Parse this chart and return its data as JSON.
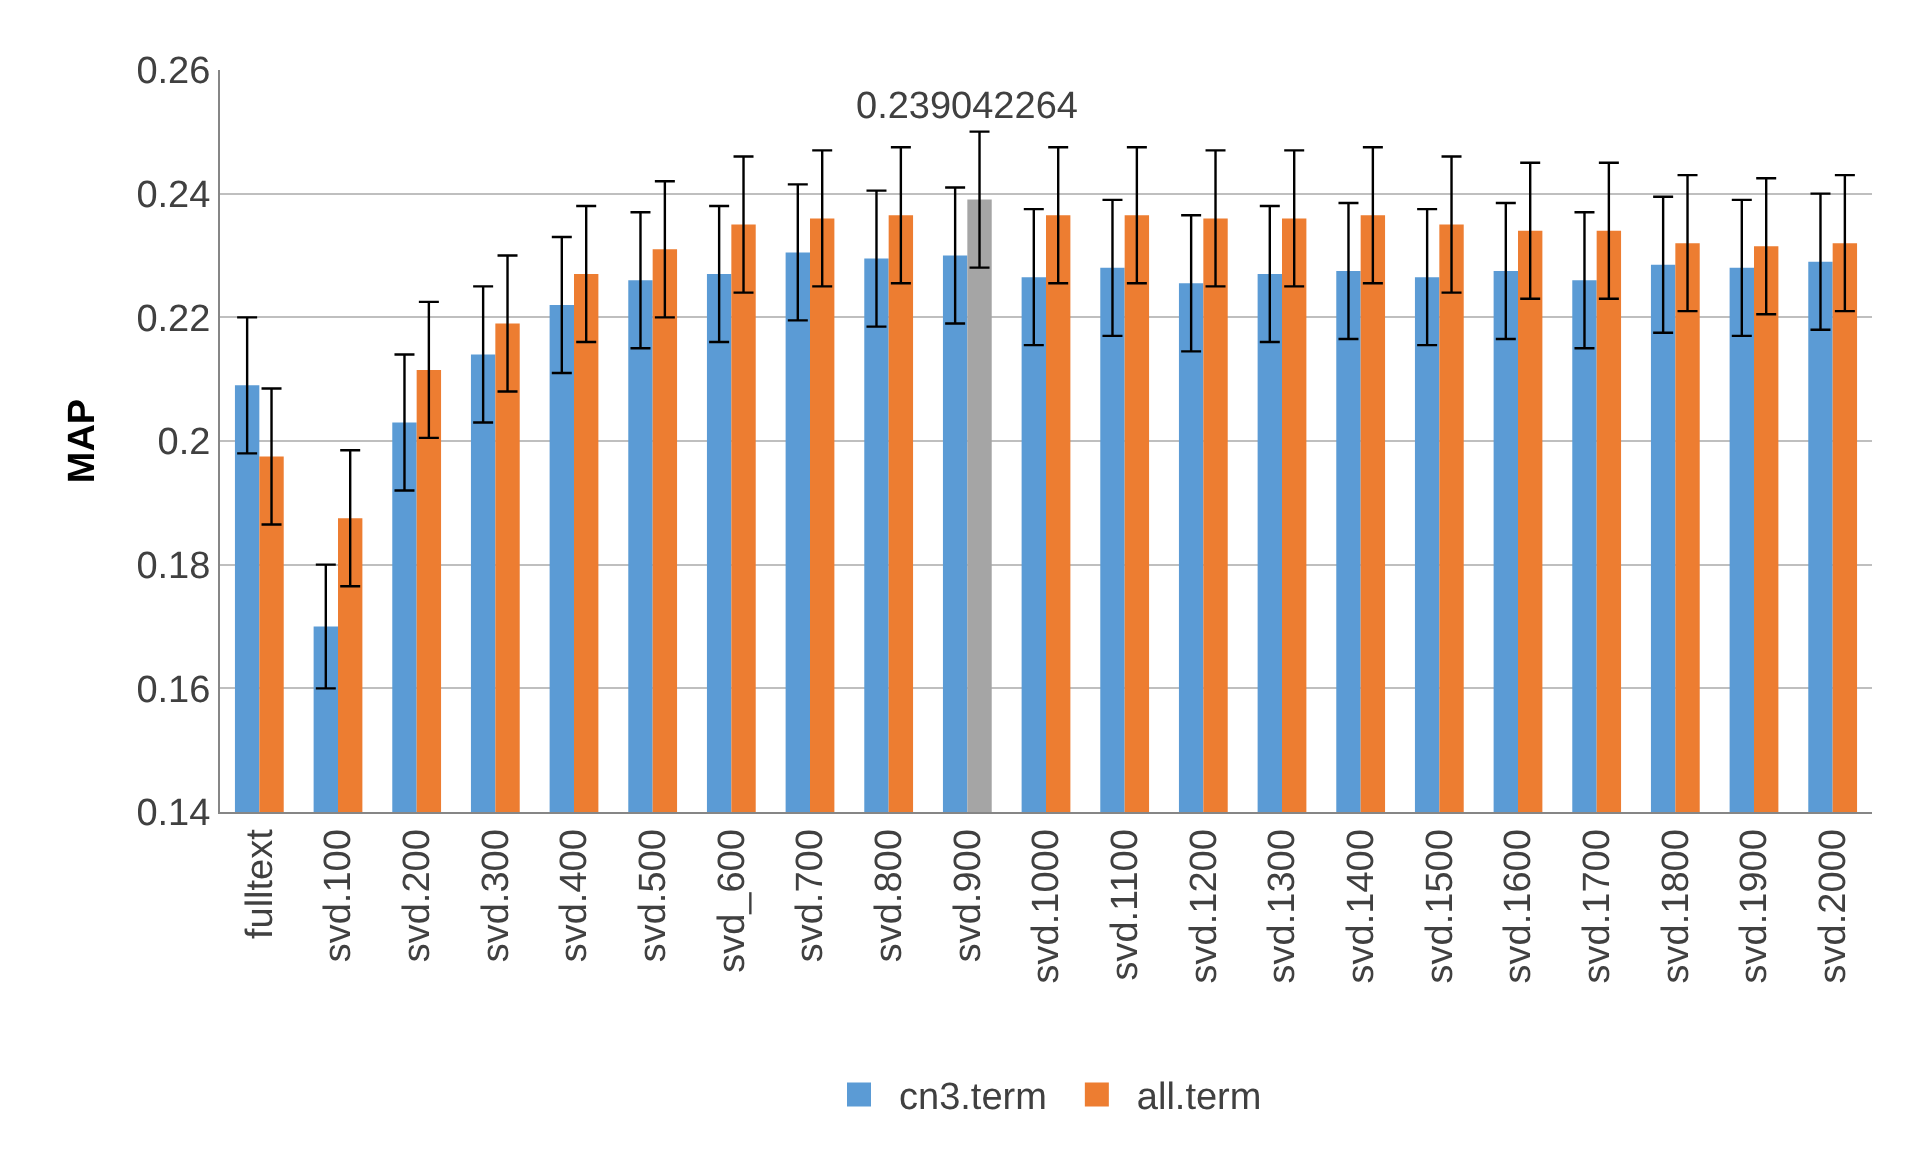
{
  "chart_data": {
    "type": "bar",
    "ylabel": "MAP",
    "categories": [
      "fulltext",
      "svd.100",
      "svd.200",
      "svd.300",
      "svd.400",
      "svd.500",
      "svd_600",
      "svd.700",
      "svd.800",
      "svd.900",
      "svd.1000",
      "svd.1100",
      "svd.1200",
      "svd.1300",
      "svd.1400",
      "svd.1500",
      "svd.1600",
      "svd.1700",
      "svd.1800",
      "svd.1900",
      "svd.2000"
    ],
    "series": [
      {
        "name": "cn3.term",
        "color": "#5b9bd5",
        "values": [
          0.209,
          0.17,
          0.203,
          0.214,
          0.222,
          0.226,
          0.227,
          0.2305,
          0.2295,
          0.23,
          0.2265,
          0.228,
          0.2255,
          0.227,
          0.2275,
          0.2265,
          0.2275,
          0.226,
          0.2285,
          0.228,
          0.229
        ],
        "errors": [
          0.011,
          0.01,
          0.011,
          0.011,
          0.011,
          0.011,
          0.011,
          0.011,
          0.011,
          0.011,
          0.011,
          0.011,
          0.011,
          0.011,
          0.011,
          0.011,
          0.011,
          0.011,
          0.011,
          0.011,
          0.011
        ]
      },
      {
        "name": "all.term",
        "color": "#ed7d31",
        "colors": [
          "#ed7d31",
          "#ed7d31",
          "#ed7d31",
          "#ed7d31",
          "#ed7d31",
          "#ed7d31",
          "#ed7d31",
          "#ed7d31",
          "#ed7d31",
          "#a5a5a5",
          "#ed7d31",
          "#ed7d31",
          "#ed7d31",
          "#ed7d31",
          "#ed7d31",
          "#ed7d31",
          "#ed7d31",
          "#ed7d31",
          "#ed7d31",
          "#ed7d31",
          "#ed7d31"
        ],
        "values": [
          0.1975,
          0.1875,
          0.2115,
          0.219,
          0.227,
          0.231,
          0.235,
          0.236,
          0.2365,
          0.239042264,
          0.2365,
          0.2365,
          0.236,
          0.236,
          0.2365,
          0.235,
          0.234,
          0.234,
          0.232,
          0.2315,
          0.232
        ],
        "errors": [
          0.011,
          0.011,
          0.011,
          0.011,
          0.011,
          0.011,
          0.011,
          0.011,
          0.011,
          0.011,
          0.011,
          0.011,
          0.011,
          0.011,
          0.011,
          0.011,
          0.011,
          0.011,
          0.011,
          0.011,
          0.011
        ],
        "value_labels": [
          null,
          null,
          null,
          null,
          null,
          null,
          null,
          null,
          null,
          "0.239042264",
          null,
          null,
          null,
          null,
          null,
          null,
          null,
          null,
          null,
          null,
          null
        ]
      }
    ],
    "ylim": [
      0.14,
      0.26
    ],
    "yticks": [
      0.14,
      0.16,
      0.18,
      0.2,
      0.22,
      0.24,
      0.26
    ],
    "grid": "y",
    "legend": "bottom"
  }
}
